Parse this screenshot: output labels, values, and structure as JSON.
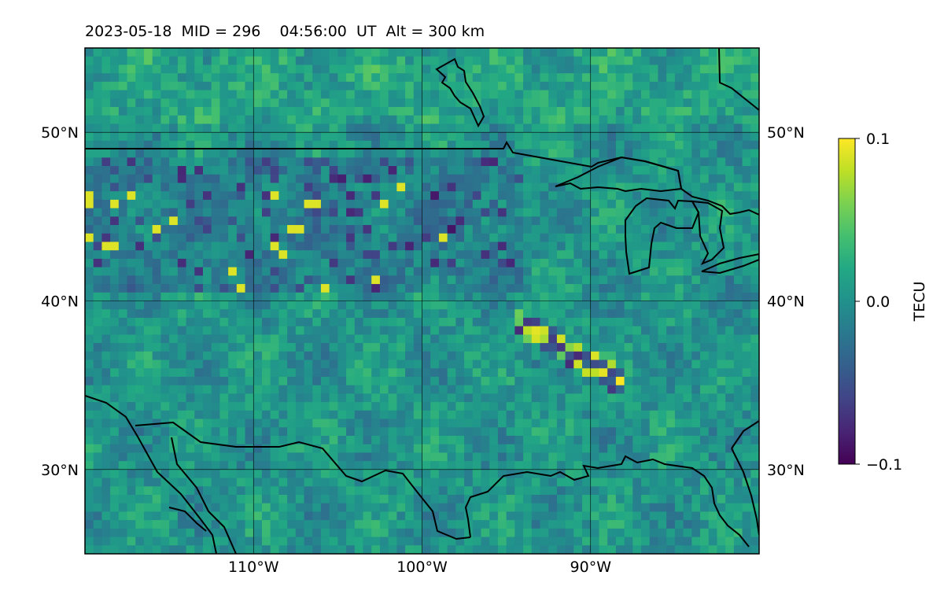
{
  "title": "2023-05-18  MID = 296    04:56:00  UT  Alt = 300 km",
  "map": {
    "lon_range": [
      -120,
      -80
    ],
    "lat_range": [
      25,
      55
    ],
    "grid": true,
    "lon_ticks": [
      {
        "value": -110,
        "label": "110°W"
      },
      {
        "value": -100,
        "label": "100°W"
      },
      {
        "value": -90,
        "label": "90°W"
      }
    ],
    "lat_ticks": [
      {
        "value": 50,
        "label": "50°N"
      },
      {
        "value": 40,
        "label": "40°N"
      },
      {
        "value": 30,
        "label": "30°N"
      }
    ],
    "field": "TEC perturbation grid (0.5° cells), values clipped to ±0.1 TECU",
    "colormap": "viridis",
    "colors": {
      "low": "#440154",
      "mid": "#21918c",
      "high": "#fde725",
      "coastline": "#000000",
      "grid": "#000000"
    }
  },
  "colorbar": {
    "label": "TECU",
    "ticks": [
      {
        "value": 0.1,
        "label": "0.1"
      },
      {
        "value": 0.0,
        "label": "0.0"
      },
      {
        "value": -0.1,
        "label": "−0.1"
      }
    ],
    "vmin": -0.1,
    "vmax": 0.1
  }
}
